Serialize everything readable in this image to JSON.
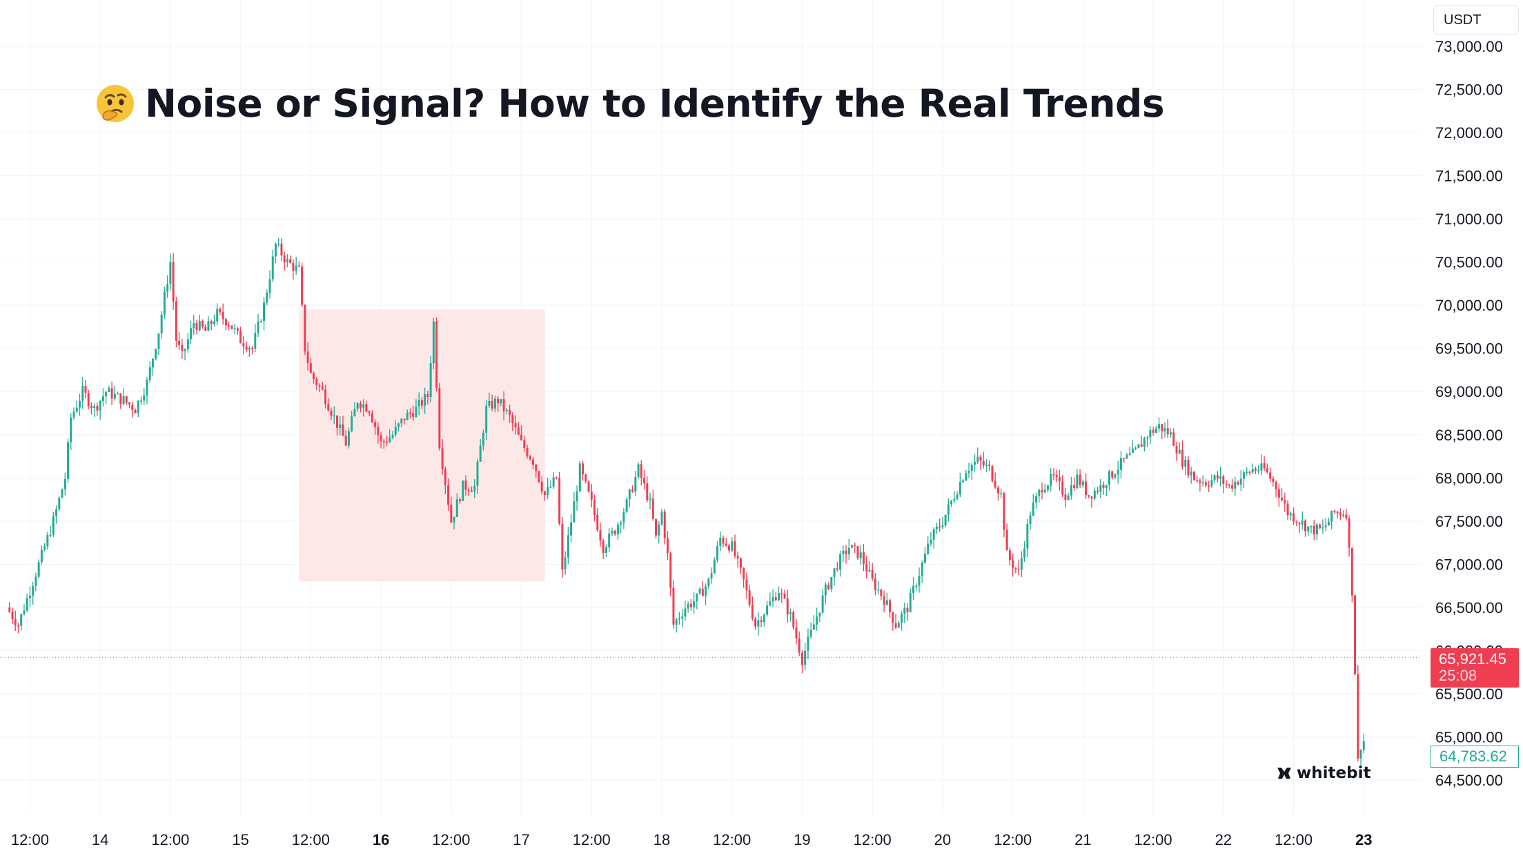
{
  "title": "Noise or Signal? How to Identify the Real Trends",
  "title_emoji": "thinking-face-emoji",
  "unit_label": "USDT",
  "brand": "whitebit",
  "current_price": "65,921.45",
  "countdown": "25:08",
  "low_price_label": "64,783.62",
  "colors": {
    "up": "#22ab94",
    "down": "#ef3d52",
    "zone": "#fde8e8",
    "grid": "#f0f3fa",
    "text": "#131722"
  },
  "chart_data": {
    "type": "candlestick",
    "title": "Noise or Signal? How to Identify the Real Trends",
    "ylim": [
      64000,
      73100
    ],
    "y_ticks": [
      64500,
      65000,
      65500,
      66000,
      66500,
      67000,
      67500,
      68000,
      68500,
      69000,
      69500,
      70000,
      70500,
      71000,
      71500,
      72000,
      72500,
      73000
    ],
    "y_tick_labels": [
      "64,500.00",
      "65,000.00",
      "65,500.00",
      "66,000.00",
      "66,500.00",
      "67,000.00",
      "67,500.00",
      "68,000.00",
      "68,500.00",
      "69,000.00",
      "69,500.00",
      "70,000.00",
      "70,500.00",
      "71,000.00",
      "71,500.00",
      "72,000.00",
      "72,500.00",
      "73,000.00"
    ],
    "x_range_hours": [
      -27,
      216
    ],
    "x_ticks": [
      {
        "label": "12:00",
        "t": -24,
        "bold": false
      },
      {
        "label": "14",
        "t": -12,
        "bold": false
      },
      {
        "label": "12:00",
        "t": 0,
        "bold": false
      },
      {
        "label": "15",
        "t": 12,
        "bold": false
      },
      {
        "label": "12:00",
        "t": 24,
        "bold": false
      },
      {
        "label": "16",
        "t": 36,
        "bold": true
      },
      {
        "label": "12:00",
        "t": 48,
        "bold": false
      },
      {
        "label": "17",
        "t": 60,
        "bold": false
      },
      {
        "label": "12:00",
        "t": 72,
        "bold": false
      },
      {
        "label": "18",
        "t": 84,
        "bold": false
      },
      {
        "label": "12:00",
        "t": 96,
        "bold": false
      },
      {
        "label": "19",
        "t": 108,
        "bold": false
      },
      {
        "label": "12:00",
        "t": 120,
        "bold": false
      },
      {
        "label": "20",
        "t": 132,
        "bold": false
      },
      {
        "label": "12:00",
        "t": 144,
        "bold": false
      },
      {
        "label": "21",
        "t": 156,
        "bold": false
      },
      {
        "label": "12:00",
        "t": 168,
        "bold": false
      },
      {
        "label": "22",
        "t": 180,
        "bold": false
      },
      {
        "label": "12:00",
        "t": 192,
        "bold": false
      },
      {
        "label": "23",
        "t": 204,
        "bold": true
      }
    ],
    "zone": {
      "t_start": 22,
      "t_end": 64,
      "price_high": 69950,
      "price_low": 66800
    },
    "current_price_line": 65921.45,
    "grid": true,
    "anchors": [
      {
        "t": -28,
        "p": 66500
      },
      {
        "t": -26,
        "p": 66300
      },
      {
        "t": -24,
        "p": 66700
      },
      {
        "t": -22,
        "p": 67100
      },
      {
        "t": -20,
        "p": 67500
      },
      {
        "t": -18,
        "p": 68000
      },
      {
        "t": -17,
        "p": 68700
      },
      {
        "t": -15,
        "p": 69000
      },
      {
        "t": -13,
        "p": 68800
      },
      {
        "t": -11,
        "p": 69000
      },
      {
        "t": -8,
        "p": 68900
      },
      {
        "t": -6,
        "p": 68800
      },
      {
        "t": -4,
        "p": 69100
      },
      {
        "t": -2,
        "p": 69700
      },
      {
        "t": 0,
        "p": 70500
      },
      {
        "t": 1,
        "p": 69600
      },
      {
        "t": 2,
        "p": 69400
      },
      {
        "t": 4,
        "p": 69800
      },
      {
        "t": 6,
        "p": 69700
      },
      {
        "t": 8,
        "p": 69900
      },
      {
        "t": 10,
        "p": 69800
      },
      {
        "t": 12,
        "p": 69600
      },
      {
        "t": 14,
        "p": 69500
      },
      {
        "t": 16,
        "p": 70000
      },
      {
        "t": 18,
        "p": 70700
      },
      {
        "t": 20,
        "p": 70500
      },
      {
        "t": 22,
        "p": 70400
      },
      {
        "t": 23,
        "p": 69500
      },
      {
        "t": 24,
        "p": 69200
      },
      {
        "t": 26,
        "p": 69000
      },
      {
        "t": 28,
        "p": 68700
      },
      {
        "t": 30,
        "p": 68400
      },
      {
        "t": 32,
        "p": 68900
      },
      {
        "t": 34,
        "p": 68800
      },
      {
        "t": 36,
        "p": 68400
      },
      {
        "t": 38,
        "p": 68500
      },
      {
        "t": 40,
        "p": 68700
      },
      {
        "t": 42,
        "p": 68800
      },
      {
        "t": 44,
        "p": 68950
      },
      {
        "t": 45,
        "p": 69800
      },
      {
        "t": 46,
        "p": 68400
      },
      {
        "t": 48,
        "p": 67500
      },
      {
        "t": 50,
        "p": 67900
      },
      {
        "t": 52,
        "p": 67900
      },
      {
        "t": 54,
        "p": 68800
      },
      {
        "t": 56,
        "p": 68900
      },
      {
        "t": 58,
        "p": 68700
      },
      {
        "t": 60,
        "p": 68400
      },
      {
        "t": 62,
        "p": 68200
      },
      {
        "t": 64,
        "p": 67800
      },
      {
        "t": 66,
        "p": 68000
      },
      {
        "t": 67,
        "p": 66900
      },
      {
        "t": 68,
        "p": 67300
      },
      {
        "t": 70,
        "p": 68100
      },
      {
        "t": 72,
        "p": 67700
      },
      {
        "t": 74,
        "p": 67200
      },
      {
        "t": 76,
        "p": 67400
      },
      {
        "t": 78,
        "p": 67700
      },
      {
        "t": 80,
        "p": 68100
      },
      {
        "t": 82,
        "p": 67700
      },
      {
        "t": 83,
        "p": 67300
      },
      {
        "t": 84,
        "p": 67600
      },
      {
        "t": 85,
        "p": 67100
      },
      {
        "t": 86,
        "p": 66300
      },
      {
        "t": 88,
        "p": 66500
      },
      {
        "t": 90,
        "p": 66600
      },
      {
        "t": 92,
        "p": 66800
      },
      {
        "t": 94,
        "p": 67300
      },
      {
        "t": 96,
        "p": 67200
      },
      {
        "t": 98,
        "p": 66800
      },
      {
        "t": 100,
        "p": 66300
      },
      {
        "t": 102,
        "p": 66500
      },
      {
        "t": 104,
        "p": 66700
      },
      {
        "t": 106,
        "p": 66400
      },
      {
        "t": 108,
        "p": 65900
      },
      {
        "t": 110,
        "p": 66300
      },
      {
        "t": 112,
        "p": 66700
      },
      {
        "t": 114,
        "p": 67000
      },
      {
        "t": 116,
        "p": 67200
      },
      {
        "t": 118,
        "p": 67100
      },
      {
        "t": 120,
        "p": 66800
      },
      {
        "t": 122,
        "p": 66600
      },
      {
        "t": 124,
        "p": 66300
      },
      {
        "t": 126,
        "p": 66500
      },
      {
        "t": 128,
        "p": 66900
      },
      {
        "t": 130,
        "p": 67300
      },
      {
        "t": 132,
        "p": 67500
      },
      {
        "t": 134,
        "p": 67800
      },
      {
        "t": 136,
        "p": 68100
      },
      {
        "t": 138,
        "p": 68200
      },
      {
        "t": 140,
        "p": 68100
      },
      {
        "t": 142,
        "p": 67800
      },
      {
        "t": 143,
        "p": 67100
      },
      {
        "t": 145,
        "p": 66900
      },
      {
        "t": 147,
        "p": 67600
      },
      {
        "t": 149,
        "p": 67900
      },
      {
        "t": 151,
        "p": 68000
      },
      {
        "t": 153,
        "p": 67800
      },
      {
        "t": 155,
        "p": 68000
      },
      {
        "t": 157,
        "p": 67800
      },
      {
        "t": 159,
        "p": 67900
      },
      {
        "t": 161,
        "p": 68050
      },
      {
        "t": 163,
        "p": 68200
      },
      {
        "t": 165,
        "p": 68300
      },
      {
        "t": 167,
        "p": 68500
      },
      {
        "t": 169,
        "p": 68600
      },
      {
        "t": 171,
        "p": 68500
      },
      {
        "t": 173,
        "p": 68200
      },
      {
        "t": 175,
        "p": 68000
      },
      {
        "t": 177,
        "p": 67950
      },
      {
        "t": 179,
        "p": 68000
      },
      {
        "t": 181,
        "p": 67900
      },
      {
        "t": 183,
        "p": 68000
      },
      {
        "t": 185,
        "p": 68100
      },
      {
        "t": 187,
        "p": 68100
      },
      {
        "t": 189,
        "p": 67900
      },
      {
        "t": 191,
        "p": 67600
      },
      {
        "t": 193,
        "p": 67500
      },
      {
        "t": 195,
        "p": 67400
      },
      {
        "t": 197,
        "p": 67400
      },
      {
        "t": 199,
        "p": 67600
      },
      {
        "t": 201,
        "p": 67600
      },
      {
        "t": 202,
        "p": 66700
      },
      {
        "t": 203,
        "p": 64750
      },
      {
        "t": 204,
        "p": 64950
      }
    ]
  }
}
